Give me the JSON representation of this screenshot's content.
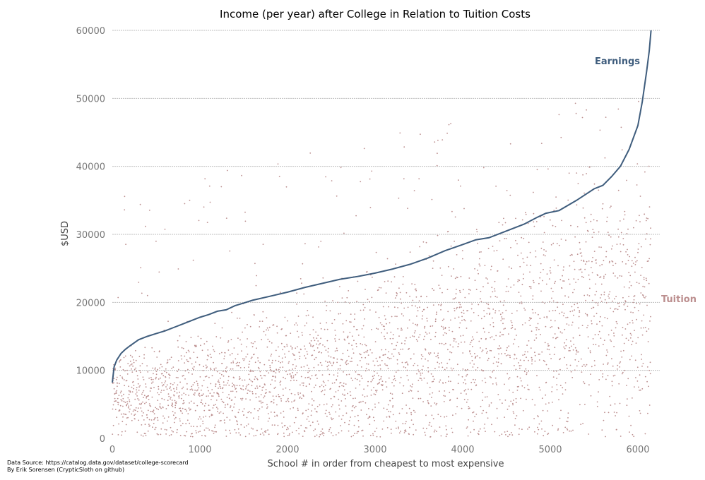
{
  "chart_data": {
    "type": "scatter",
    "title": "Income (per year) after College in Relation to Tuition Costs",
    "xlabel": "School # in order from cheapest to most expensive",
    "ylabel": "$USD",
    "xlim": [
      0,
      6250
    ],
    "ylim": [
      0,
      60000
    ],
    "xticks": [
      0,
      1000,
      2000,
      3000,
      4000,
      5000,
      6000
    ],
    "yticks": [
      0,
      10000,
      20000,
      30000,
      40000,
      50000,
      60000
    ],
    "grid": "horizontal",
    "series": [
      {
        "name": "Earnings",
        "kind": "line",
        "color": "#3f5d7d",
        "x": [
          0,
          20,
          50,
          100,
          150,
          200,
          300,
          400,
          500,
          600,
          700,
          800,
          900,
          1000,
          1100,
          1200,
          1300,
          1400,
          1500,
          1600,
          1800,
          2000,
          2200,
          2400,
          2600,
          2800,
          3000,
          3200,
          3400,
          3600,
          3800,
          4000,
          4150,
          4300,
          4500,
          4700,
          4850,
          4950,
          5100,
          5300,
          5500,
          5600,
          5700,
          5800,
          5900,
          6000,
          6050,
          6100,
          6130,
          6150
        ],
        "values": [
          8200,
          10500,
          11500,
          12500,
          13100,
          13600,
          14500,
          15000,
          15400,
          15800,
          16300,
          16800,
          17300,
          17800,
          18200,
          18700,
          18900,
          19500,
          19900,
          20300,
          20900,
          21500,
          22200,
          22800,
          23400,
          23800,
          24300,
          24900,
          25600,
          26500,
          27600,
          28500,
          29200,
          29500,
          30500,
          31500,
          32500,
          33100,
          33500,
          35000,
          36700,
          37200,
          38500,
          40000,
          42500,
          46000,
          49500,
          54000,
          57000,
          60000
        ]
      },
      {
        "name": "Tuition",
        "kind": "scatter",
        "color": "#bc8f8f",
        "points": []
      }
    ],
    "source_text": [
      "Data Source: https://catalog.data.gov/dataset/college-scorecard",
      "By Erik Sorensen (CrypticSloth on github)"
    ]
  }
}
